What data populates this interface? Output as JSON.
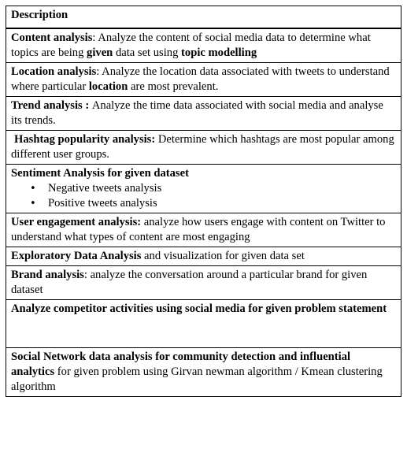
{
  "header": "Description",
  "rows": [
    {
      "title": "Content analysis",
      "text1": ": Analyze the content of social media data  to determine what topics are being ",
      "bold1": "given",
      "text2": " data set  using ",
      "bold2": "topic modelling"
    },
    {
      "title": "Location analysis",
      "text1": ": Analyze the location data associated with tweets to understand where particular ",
      "bold1": "location",
      "text2": "  are most prevalent."
    },
    {
      "title": "Trend analysis : ",
      "text1": " Analyze the time data associated with social media and analyse its trends."
    },
    {
      "title": "Hashtag popularity analysis:",
      "text1": " Determine which hashtags are most popular among different user groups."
    },
    {
      "title": "Sentiment Analysis for given dataset",
      "bullets": [
        "Negative tweets analysis",
        "Positive tweets analysis"
      ]
    },
    {
      "title": "User engagement analysis:",
      "text1": " analyze how users engage with content on Twitter to understand what types of content are most engaging"
    },
    {
      "title": "Exploratory Data Analysis",
      "text1": " and visualization for given data set"
    },
    {
      "title": "Brand analysis",
      "text1": ": analyze the conversation around a particular brand for given dataset"
    },
    {
      "title": "Analyze competitor activities using social media for given problem statement"
    },
    {
      "title": "Social Network data analysis  for community detection and influential analytics",
      "text1": " for given problem using Girvan newman algorithm / Kmean clustering algorithm"
    }
  ]
}
